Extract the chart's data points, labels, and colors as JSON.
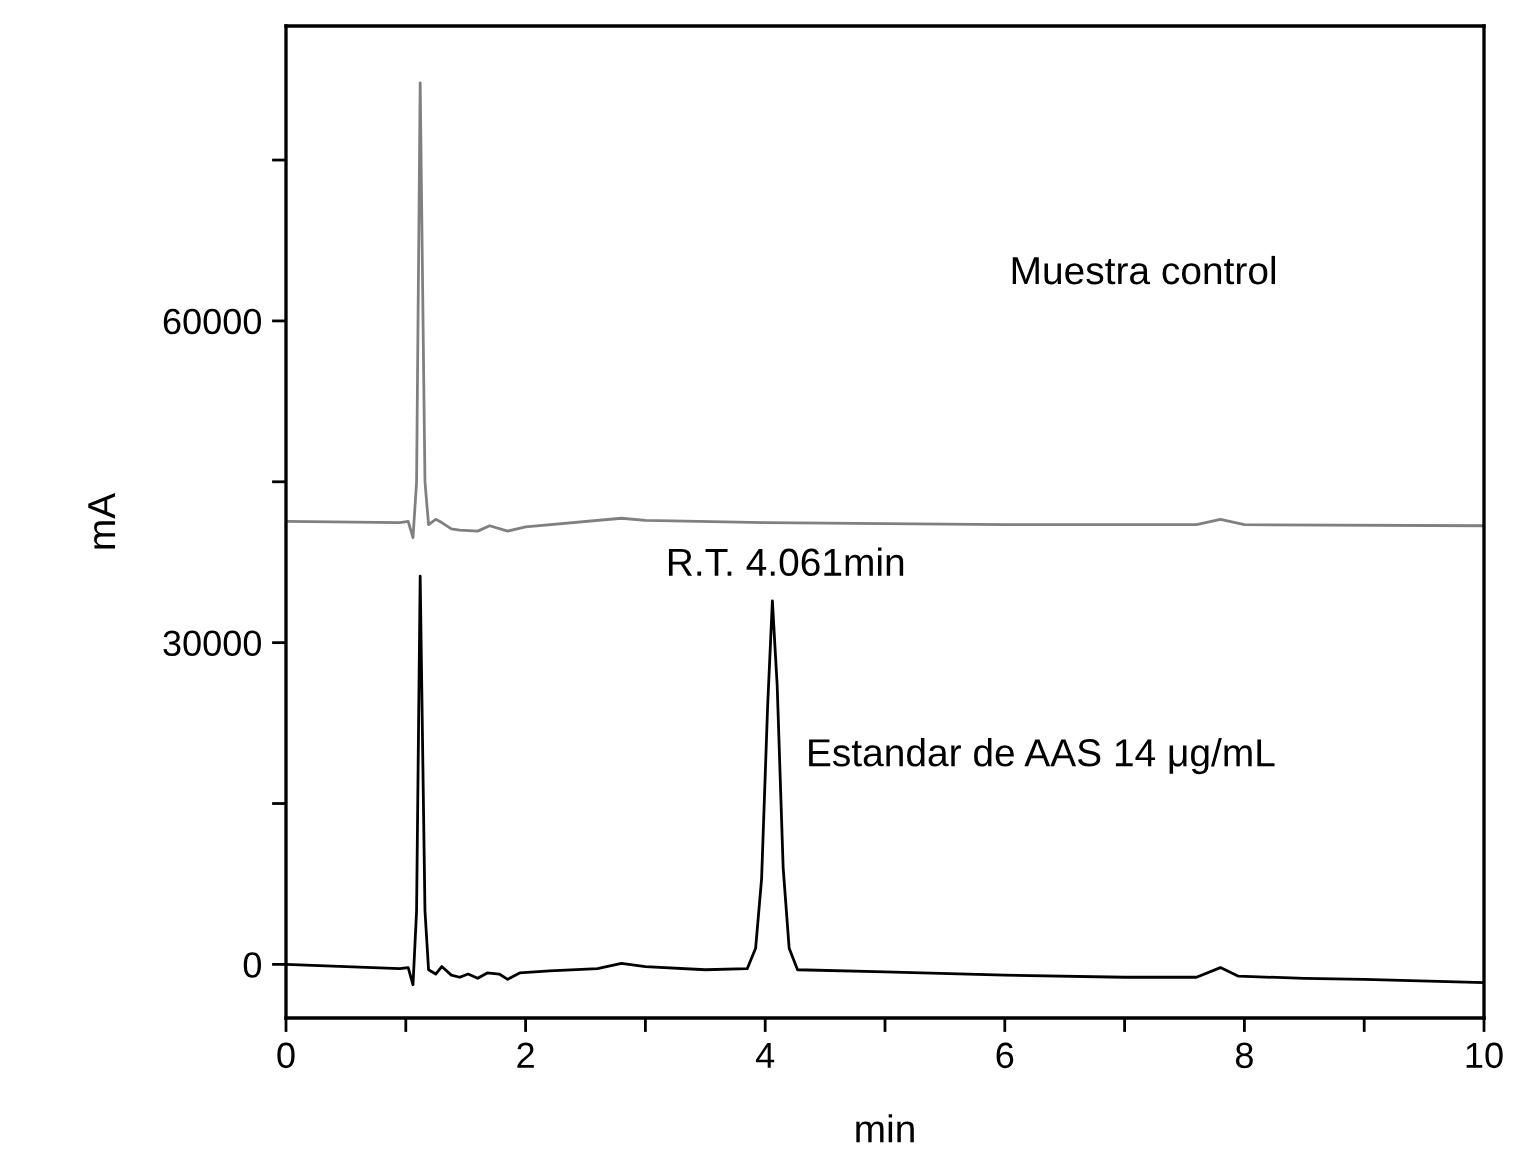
{
  "chart_data": {
    "type": "line",
    "xlabel": "min",
    "ylabel": "mA",
    "xlim": [
      0,
      10
    ],
    "ylim": [
      -5000,
      87500
    ],
    "xticks": [
      0,
      {
        "value": 1,
        "label": null
      },
      2,
      {
        "value": 3,
        "label": null
      },
      4,
      {
        "value": 5,
        "label": null
      },
      6,
      {
        "value": 7,
        "label": null
      },
      8,
      {
        "value": 9,
        "label": null
      },
      10
    ],
    "yticks": [
      0,
      {
        "value": 15000,
        "label": null
      },
      30000,
      {
        "value": 45000,
        "label": null
      },
      60000,
      {
        "value": 75000,
        "label": null
      }
    ],
    "grid": false,
    "marker": "none",
    "line_style": "solid",
    "series": [
      {
        "color": "#808080",
        "x": [
          0,
          0.95,
          1.02,
          1.06,
          1.09,
          1.12,
          1.16,
          1.19,
          1.25,
          1.3,
          1.38,
          1.45,
          1.6,
          1.7,
          1.85,
          2.0,
          2.8,
          3.0,
          4.0,
          6.0,
          7.6,
          7.8,
          8.0,
          10.0
        ],
        "values": [
          41300,
          41200,
          41300,
          39800,
          45000,
          82200,
          45000,
          41000,
          41500,
          41200,
          40600,
          40500,
          40400,
          40900,
          40400,
          40800,
          41600,
          41400,
          41200,
          41000,
          41000,
          41500,
          41000,
          40900
        ]
      },
      {
        "name": "Estandar de AAS 14 μg/mL",
        "color": "#000000",
        "x": [
          0,
          0.5,
          0.95,
          1.02,
          1.06,
          1.09,
          1.12,
          1.16,
          1.19,
          1.25,
          1.3,
          1.38,
          1.45,
          1.52,
          1.6,
          1.68,
          1.78,
          1.85,
          1.95,
          2.2,
          2.6,
          2.8,
          3.0,
          3.5,
          3.85,
          3.92,
          3.97,
          4.02,
          4.06,
          4.1,
          4.15,
          4.2,
          4.27,
          5.0,
          6.0,
          7.0,
          7.6,
          7.8,
          7.95,
          8.5,
          9.0,
          10.0
        ],
        "values": [
          0,
          -200,
          -400,
          -300,
          -1900,
          5000,
          36200,
          5000,
          -500,
          -900,
          -200,
          -1000,
          -1200,
          -900,
          -1300,
          -800,
          -900,
          -1400,
          -800,
          -600,
          -400,
          100,
          -200,
          -500,
          -400,
          1500,
          8000,
          24000,
          33900,
          26000,
          9000,
          1500,
          -500,
          -700,
          -1000,
          -1200,
          -1200,
          -300,
          -1100,
          -1300,
          -1400,
          -1700
        ]
      }
    ],
    "annotations": [
      "Muestra control",
      "R.T. 4.061min"
    ]
  }
}
